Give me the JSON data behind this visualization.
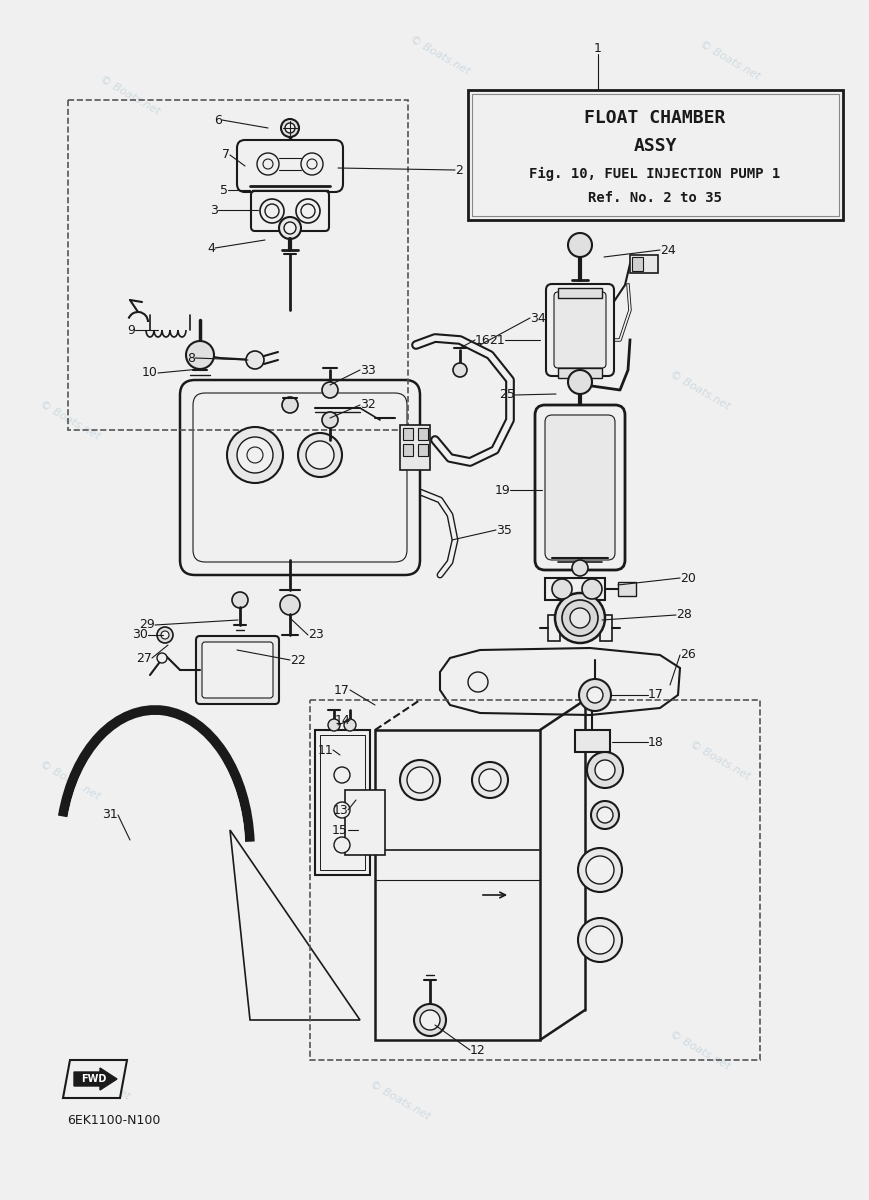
{
  "title_line1": "FLOAT CHAMBER",
  "title_line2": "ASSY",
  "title_line3": "Fig. 10, FUEL INJECTION PUMP 1",
  "title_line4": "Ref. No. 2 to 35",
  "diagram_code": "6EK1100-N100",
  "bg_color": "#f0f0f0",
  "line_color": "#1a1a1a",
  "watermark_color": "#b8ccd8",
  "watermark_text": "© Boats.net"
}
